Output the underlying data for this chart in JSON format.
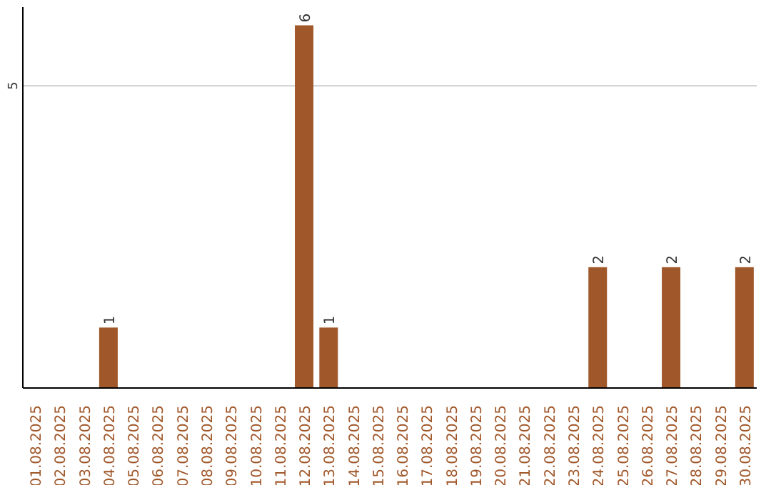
{
  "chart_data": {
    "type": "bar",
    "categories": [
      "01.08.2025",
      "02.08.2025",
      "03.08.2025",
      "04.08.2025",
      "05.08.2025",
      "06.08.2025",
      "07.08.2025",
      "08.08.2025",
      "09.08.2025",
      "10.08.2025",
      "11.08.2025",
      "12.08.2025",
      "13.08.2025",
      "14.08.2025",
      "15.08.2025",
      "16.08.2025",
      "17.08.2025",
      "18.08.2025",
      "19.08.2025",
      "20.08.2025",
      "21.08.2025",
      "22.08.2025",
      "23.08.2025",
      "24.08.2025",
      "25.08.2025",
      "26.08.2025",
      "27.08.2025",
      "28.08.2025",
      "29.08.2025",
      "30.08.2025"
    ],
    "values": [
      0,
      0,
      0,
      1,
      0,
      0,
      0,
      0,
      0,
      0,
      0,
      6,
      1,
      0,
      0,
      0,
      0,
      0,
      0,
      0,
      0,
      0,
      0,
      2,
      0,
      0,
      2,
      0,
      0,
      2
    ],
    "value_labels": [
      null,
      null,
      null,
      "1",
      null,
      null,
      null,
      null,
      null,
      null,
      null,
      "6",
      "1",
      null,
      null,
      null,
      null,
      null,
      null,
      null,
      null,
      null,
      null,
      "2",
      null,
      null,
      "2",
      null,
      null,
      "2"
    ],
    "color": "#a0572a",
    "ylim": [
      0,
      6.3
    ],
    "yticks": [
      5
    ],
    "grid": "y"
  }
}
